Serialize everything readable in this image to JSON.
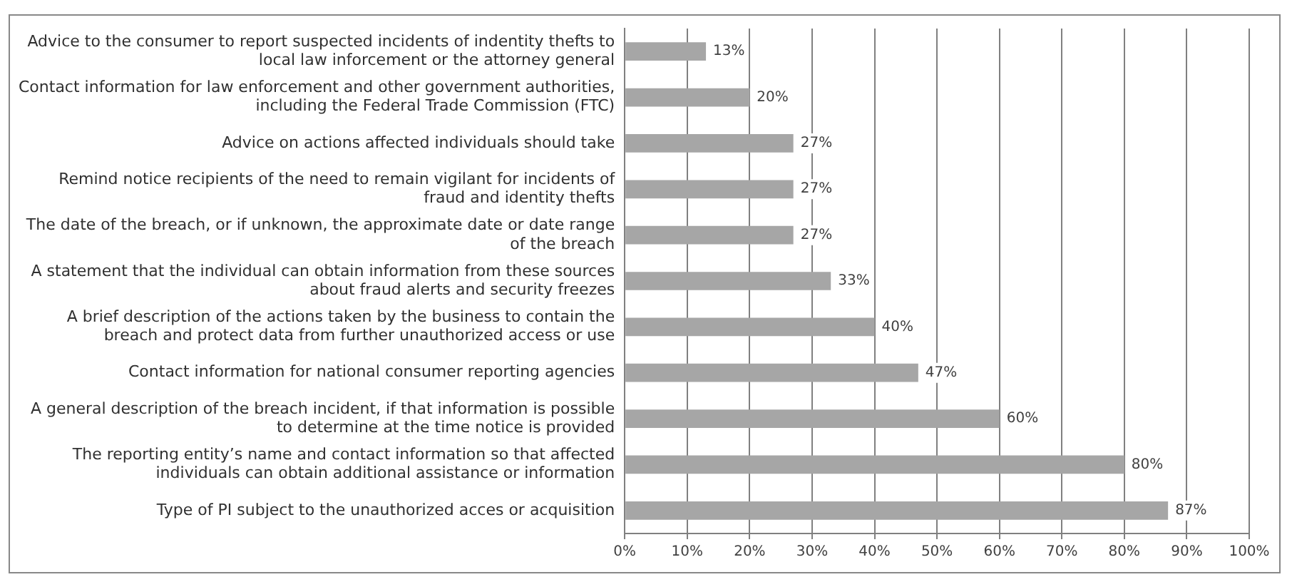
{
  "chart_data": {
    "type": "bar",
    "orientation": "horizontal",
    "categories": [
      "Advice to the consumer to report suspected incidents of indentity thefts to local law inforcement or the attorney general",
      "Contact information for law enforcement and other government authorities, including the Federal Trade Commission (FTC)",
      "Advice on actions affected individuals should take",
      "Remind notice recipients of the need to remain vigilant for incidents of fraud and identity thefts",
      "The date of the breach, or if unknown, the approximate date or date range of the breach",
      "A statement that the individual can obtain information from these sources about fraud alerts and security freezes",
      "A brief description of the actions taken by the business to contain the breach and protect data from further unauthorized access or use",
      "Contact information for national consumer reporting agencies",
      "A general description of the breach incident, if that information is possible to determine at the time notice is provided",
      "The reporting entity’s name and contact information so that affected individuals can obtain additional assistance or information",
      "Type of PI subject to the unauthorized acces or acquisition"
    ],
    "values": [
      13,
      20,
      27,
      27,
      27,
      33,
      40,
      47,
      60,
      80,
      87
    ],
    "value_labels": [
      "13%",
      "20%",
      "27%",
      "27%",
      "27%",
      "33%",
      "40%",
      "47%",
      "60%",
      "80%",
      "87%"
    ],
    "color": "#a6a6a6",
    "xlim": [
      0,
      100
    ],
    "xticks": [
      {
        "value": 0,
        "label": "0%"
      },
      {
        "value": 10,
        "label": "10%"
      },
      {
        "value": 20,
        "label": "20%"
      },
      {
        "value": 30,
        "label": "30%"
      },
      {
        "value": 40,
        "label": "40%"
      },
      {
        "value": 50,
        "label": "50%"
      },
      {
        "value": 60,
        "label": "60%"
      },
      {
        "value": 70,
        "label": "70%"
      },
      {
        "value": 80,
        "label": "80%"
      },
      {
        "value": 90,
        "label": "90%"
      },
      {
        "value": 100,
        "label": "100%"
      }
    ],
    "grid": "x",
    "legend": false
  }
}
